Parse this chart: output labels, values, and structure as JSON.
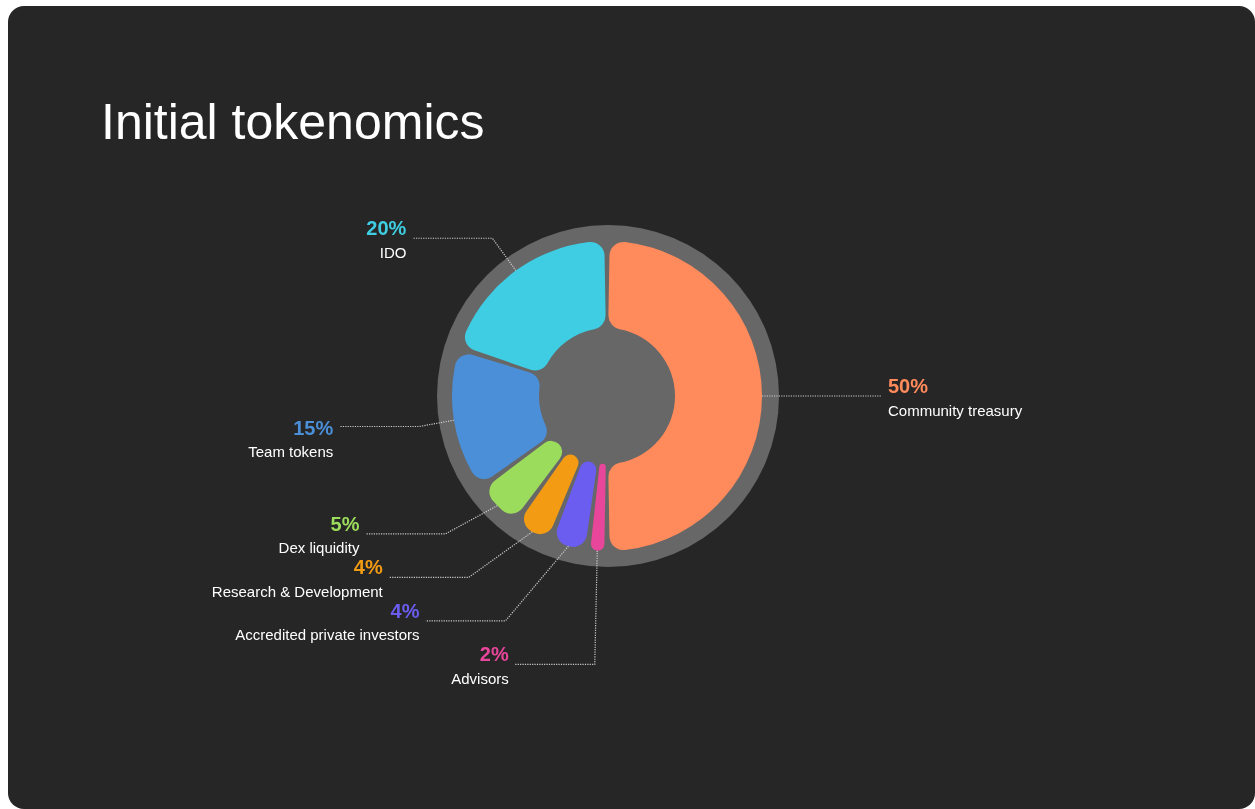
{
  "chart_data": {
    "type": "donut",
    "title": "Initial tokenomics",
    "categories": [
      "Community treasury",
      "Advisors",
      "Accredited private investors",
      "Research & Development",
      "Dex liquidity",
      "Team tokens",
      "IDO"
    ],
    "values": [
      50,
      2,
      4,
      4,
      5,
      15,
      20
    ],
    "value_labels": [
      "50%",
      "2%",
      "4%",
      "4%",
      "5%",
      "15%",
      "20%"
    ],
    "colors": [
      "#ff8a5b",
      "#e8469b",
      "#6a5df0",
      "#f29b13",
      "#9cdc5c",
      "#4a8fd8",
      "#3ecde2"
    ],
    "legend": false
  }
}
